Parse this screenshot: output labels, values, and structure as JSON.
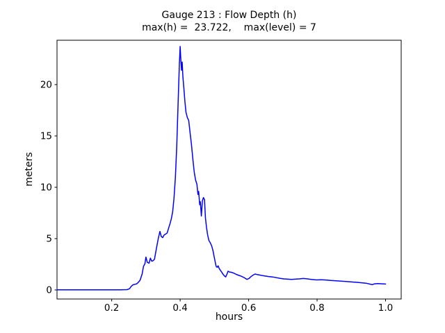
{
  "chart_data": {
    "type": "line",
    "title": "Gauge 213 : Flow Depth (h)",
    "subtitle": "max(h) =  23.722,    max(level) = 7",
    "gauge_number": "213",
    "max_h": 23.722,
    "max_level": 7,
    "xlabel": "hours",
    "ylabel": "meters",
    "xlim": [
      0.0403,
      1.0457
    ],
    "ylim": [
      -0.88,
      24.32
    ],
    "xticks": [
      0.2,
      0.4,
      0.6,
      0.8,
      1.0
    ],
    "xtick_labels": [
      "0.2",
      "0.4",
      "0.6",
      "0.8",
      "1.0"
    ],
    "yticks": [
      0,
      5,
      10,
      15,
      20
    ],
    "ytick_labels": [
      "0",
      "5",
      "10",
      "15",
      "20"
    ],
    "grid": false,
    "legend": "none",
    "line_color": "#0000ff",
    "line_width": 1.5,
    "series": [
      {
        "name": "flow-depth",
        "points": [
          [
            0.0403,
            0.02
          ],
          [
            0.08,
            0.02
          ],
          [
            0.12,
            0.02
          ],
          [
            0.16,
            0.02
          ],
          [
            0.2,
            0.02
          ],
          [
            0.225,
            0.02
          ],
          [
            0.245,
            0.03
          ],
          [
            0.252,
            0.12
          ],
          [
            0.257,
            0.35
          ],
          [
            0.262,
            0.5
          ],
          [
            0.268,
            0.55
          ],
          [
            0.273,
            0.6
          ],
          [
            0.278,
            0.75
          ],
          [
            0.283,
            0.95
          ],
          [
            0.289,
            1.55
          ],
          [
            0.293,
            2.3
          ],
          [
            0.297,
            2.55
          ],
          [
            0.3,
            3.2
          ],
          [
            0.304,
            2.7
          ],
          [
            0.309,
            2.6
          ],
          [
            0.313,
            3.1
          ],
          [
            0.317,
            2.8
          ],
          [
            0.321,
            2.85
          ],
          [
            0.325,
            3.0
          ],
          [
            0.331,
            4.1
          ],
          [
            0.336,
            5.0
          ],
          [
            0.341,
            5.7
          ],
          [
            0.345,
            5.2
          ],
          [
            0.349,
            5.1
          ],
          [
            0.353,
            5.35
          ],
          [
            0.358,
            5.45
          ],
          [
            0.362,
            5.55
          ],
          [
            0.366,
            6.0
          ],
          [
            0.37,
            6.4
          ],
          [
            0.374,
            6.9
          ],
          [
            0.378,
            7.6
          ],
          [
            0.382,
            8.9
          ],
          [
            0.386,
            10.9
          ],
          [
            0.39,
            14.0
          ],
          [
            0.393,
            17.0
          ],
          [
            0.396,
            20.2
          ],
          [
            0.398,
            22.2
          ],
          [
            0.4,
            23.722
          ],
          [
            0.402,
            22.4
          ],
          [
            0.404,
            21.4
          ],
          [
            0.406,
            22.2
          ],
          [
            0.408,
            20.8
          ],
          [
            0.411,
            19.6
          ],
          [
            0.414,
            18.3
          ],
          [
            0.417,
            17.3
          ],
          [
            0.421,
            16.8
          ],
          [
            0.425,
            16.5
          ],
          [
            0.429,
            15.3
          ],
          [
            0.433,
            14.2
          ],
          [
            0.437,
            12.8
          ],
          [
            0.441,
            11.5
          ],
          [
            0.445,
            10.7
          ],
          [
            0.449,
            10.3
          ],
          [
            0.452,
            9.3
          ],
          [
            0.454,
            9.6
          ],
          [
            0.457,
            8.3
          ],
          [
            0.459,
            8.6
          ],
          [
            0.462,
            7.2
          ],
          [
            0.465,
            8.7
          ],
          [
            0.468,
            9.0
          ],
          [
            0.471,
            8.8
          ],
          [
            0.474,
            7.0
          ],
          [
            0.477,
            6.1
          ],
          [
            0.48,
            5.4
          ],
          [
            0.484,
            4.8
          ],
          [
            0.488,
            4.6
          ],
          [
            0.492,
            4.3
          ],
          [
            0.496,
            3.8
          ],
          [
            0.499,
            3.3
          ],
          [
            0.502,
            2.8
          ],
          [
            0.505,
            2.3
          ],
          [
            0.508,
            2.2
          ],
          [
            0.511,
            2.35
          ],
          [
            0.514,
            2.1
          ],
          [
            0.518,
            1.9
          ],
          [
            0.522,
            1.7
          ],
          [
            0.526,
            1.5
          ],
          [
            0.53,
            1.35
          ],
          [
            0.533,
            1.27
          ],
          [
            0.537,
            1.55
          ],
          [
            0.54,
            1.83
          ],
          [
            0.544,
            1.75
          ],
          [
            0.55,
            1.72
          ],
          [
            0.557,
            1.63
          ],
          [
            0.564,
            1.52
          ],
          [
            0.572,
            1.42
          ],
          [
            0.58,
            1.32
          ],
          [
            0.588,
            1.18
          ],
          [
            0.595,
            1.03
          ],
          [
            0.601,
            1.12
          ],
          [
            0.607,
            1.3
          ],
          [
            0.613,
            1.45
          ],
          [
            0.619,
            1.55
          ],
          [
            0.625,
            1.5
          ],
          [
            0.633,
            1.45
          ],
          [
            0.641,
            1.4
          ],
          [
            0.65,
            1.35
          ],
          [
            0.66,
            1.3
          ],
          [
            0.67,
            1.27
          ],
          [
            0.681,
            1.2
          ],
          [
            0.692,
            1.13
          ],
          [
            0.703,
            1.08
          ],
          [
            0.714,
            1.05
          ],
          [
            0.725,
            1.03
          ],
          [
            0.736,
            1.05
          ],
          [
            0.748,
            1.08
          ],
          [
            0.76,
            1.12
          ],
          [
            0.772,
            1.08
          ],
          [
            0.785,
            1.02
          ],
          [
            0.798,
            0.98
          ],
          [
            0.812,
            1.0
          ],
          [
            0.826,
            0.97
          ],
          [
            0.84,
            0.93
          ],
          [
            0.855,
            0.9
          ],
          [
            0.87,
            0.86
          ],
          [
            0.885,
            0.82
          ],
          [
            0.9,
            0.78
          ],
          [
            0.915,
            0.75
          ],
          [
            0.93,
            0.7
          ],
          [
            0.943,
            0.66
          ],
          [
            0.953,
            0.58
          ],
          [
            0.961,
            0.52
          ],
          [
            0.968,
            0.6
          ],
          [
            0.978,
            0.62
          ],
          [
            0.989,
            0.6
          ],
          [
            1.0,
            0.58
          ]
        ]
      }
    ]
  }
}
